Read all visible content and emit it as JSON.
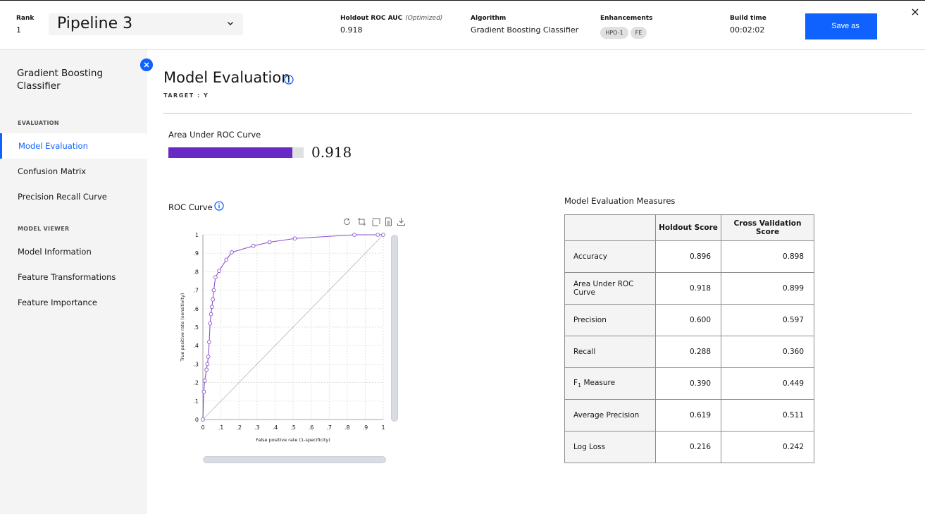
{
  "header": {
    "rank_label": "Rank",
    "rank_value": "1",
    "pipeline_name": "Pipeline 3",
    "metric_label": "Holdout ROC AUC",
    "metric_note": "(Optimized)",
    "metric_value": "0.918",
    "algorithm_label": "Algorithm",
    "algorithm_value": "Gradient Boosting Classifier",
    "enhancements_label": "Enhancements",
    "enhancements": [
      "HPO-1",
      "FE"
    ],
    "build_time_label": "Build time",
    "build_time_value": "00:02:02",
    "save_label": "Save as"
  },
  "sidebar": {
    "title": "Gradient Boosting Classifier",
    "evaluation_section": "EVALUATION",
    "evaluation_items": [
      "Model Evaluation",
      "Confusion Matrix",
      "Precision Recall Curve"
    ],
    "active_item": "Model Evaluation",
    "viewer_section": "MODEL VIEWER",
    "viewer_items": [
      "Model Information",
      "Feature Transformations",
      "Feature Importance"
    ]
  },
  "main": {
    "title": "Model Evaluation",
    "target": "TARGET : Y",
    "auc_label": "Area Under ROC Curve",
    "auc_value": "0.918",
    "auc_fraction": 0.918,
    "roc_title": "ROC Curve",
    "measures_title": "Model Evaluation Measures"
  },
  "colors": {
    "accent": "#0f62fe",
    "curve": "#8a4fcf",
    "auc_bar": "#6929c4"
  },
  "measures": {
    "columns": [
      "",
      "Holdout Score",
      "Cross Validation Score"
    ],
    "rows": [
      {
        "name": "Accuracy",
        "holdout": "0.896",
        "cv": "0.898"
      },
      {
        "name": "Area Under ROC Curve",
        "holdout": "0.918",
        "cv": "0.899"
      },
      {
        "name": "Precision",
        "holdout": "0.600",
        "cv": "0.597"
      },
      {
        "name": "Recall",
        "holdout": "0.288",
        "cv": "0.360"
      },
      {
        "name": "F1 Measure",
        "holdout": "0.390",
        "cv": "0.449"
      },
      {
        "name": "Average Precision",
        "holdout": "0.619",
        "cv": "0.511"
      },
      {
        "name": "Log Loss",
        "holdout": "0.216",
        "cv": "0.242"
      }
    ]
  },
  "chart_data": {
    "type": "line",
    "xlabel": "False positive rate (1-specificity)",
    "ylabel": "True positive rate (sensitivity)",
    "xlim": [
      0,
      1
    ],
    "ylim": [
      0,
      1
    ],
    "x_ticks": [
      "0",
      ".1",
      ".2",
      ".3",
      ".4",
      ".5",
      ".6",
      ".7",
      ".8",
      ".9",
      "1"
    ],
    "y_ticks": [
      "0",
      ".1",
      ".2",
      ".3",
      ".4",
      ".5",
      ".6",
      ".7",
      ".8",
      ".9",
      "1"
    ],
    "grid": true,
    "series": [
      {
        "x": [
          0,
          0.005,
          0.01,
          0.02,
          0.025,
          0.03,
          0.035,
          0.04,
          0.045,
          0.05,
          0.055,
          0.06,
          0.07,
          0.09,
          0.13,
          0.16,
          0.28,
          0.37,
          0.51,
          0.84,
          0.97,
          1
        ],
        "y": [
          0,
          0.15,
          0.21,
          0.27,
          0.3,
          0.34,
          0.42,
          0.52,
          0.57,
          0.61,
          0.65,
          0.7,
          0.77,
          0.805,
          0.865,
          0.905,
          0.94,
          0.96,
          0.98,
          1,
          1,
          1
        ]
      },
      {
        "x": [
          0,
          1
        ],
        "y": [
          0,
          1
        ]
      }
    ]
  }
}
